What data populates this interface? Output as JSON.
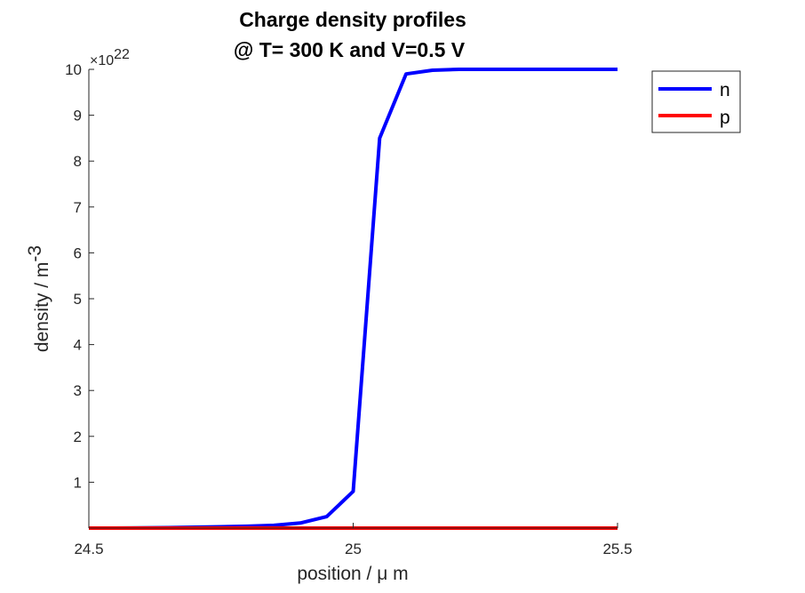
{
  "chart_data": {
    "type": "line",
    "title": [
      "Charge density profiles",
      "@ T= 300 K and V=0.5 V"
    ],
    "xlabel": "position / μ m",
    "ylabel": "density / m",
    "ylabel_superscript": "-3",
    "y_exponent_prefix": "×10",
    "y_exponent": "22",
    "xlim": [
      24.5,
      25.5
    ],
    "ylim": [
      0,
      10
    ],
    "xticks": [
      "24.5",
      "25",
      "25.5"
    ],
    "xtick_values": [
      24.5,
      25,
      25.5
    ],
    "yticks": [
      "1",
      "2",
      "3",
      "4",
      "5",
      "6",
      "7",
      "8",
      "9",
      "10"
    ],
    "ytick_values": [
      1,
      2,
      3,
      4,
      5,
      6,
      7,
      8,
      9,
      10
    ],
    "grid": false,
    "legend_position": "top-right",
    "series": [
      {
        "name": "n",
        "color": "#0000ff",
        "x": [
          24.5,
          24.55,
          24.6,
          24.65,
          24.7,
          24.75,
          24.8,
          24.85,
          24.9,
          24.95,
          25.0,
          25.05,
          25.1,
          25.15,
          25.2,
          25.25,
          25.3,
          25.35,
          25.4,
          25.45,
          25.5
        ],
        "values": [
          0.0,
          0.0,
          0.005,
          0.01,
          0.02,
          0.03,
          0.04,
          0.06,
          0.11,
          0.25,
          0.8,
          8.5,
          9.9,
          9.98,
          10.0,
          10.0,
          10.0,
          10.0,
          10.0,
          10.0,
          10.0
        ]
      },
      {
        "name": "p",
        "color": "#ff0000",
        "x": [
          24.5,
          24.55,
          24.6,
          24.65,
          24.7,
          24.75,
          24.8,
          24.85,
          24.9,
          24.95,
          25.0,
          25.05,
          25.1,
          25.15,
          25.2,
          25.25,
          25.3,
          25.35,
          25.4,
          25.45,
          25.5
        ],
        "values": [
          0.0,
          0.0,
          0.0,
          0.0,
          0.0,
          0.0,
          0.0,
          0.0,
          0.0,
          0.0,
          0.0,
          0.0,
          0.0,
          0.0,
          0.0,
          0.0,
          0.0,
          0.0,
          0.0,
          0.0,
          0.0
        ]
      }
    ]
  }
}
